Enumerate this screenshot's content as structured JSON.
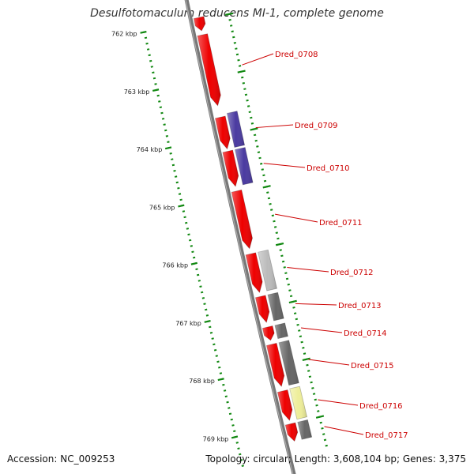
{
  "title": "Desulfotomaculum reducens MI-1, complete genome",
  "footer": {
    "accession": "Accession: NC_009253",
    "summary": "Topology: circular; Length: 3,608,104 bp; Genes: 3,375"
  },
  "colors": {
    "backbone": "#777777",
    "tick": "#118811",
    "forward_gene": "#ee0000",
    "label_line": "#cc0000"
  },
  "kbp_ticks": [
    {
      "label": "762 kbp",
      "kbp": 762
    },
    {
      "label": "763 kbp",
      "kbp": 763
    },
    {
      "label": "764 kbp",
      "kbp": 764
    },
    {
      "label": "765 kbp",
      "kbp": 765
    },
    {
      "label": "766 kbp",
      "kbp": 766
    },
    {
      "label": "767 kbp",
      "kbp": 767
    },
    {
      "label": "768 kbp",
      "kbp": 768
    },
    {
      "label": "769 kbp",
      "kbp": 769
    }
  ],
  "genes": [
    {
      "label": "",
      "start_kbp": 761.95,
      "end_kbp": 762.18,
      "color": "#ee0000"
    },
    {
      "label": "Dred_0708",
      "start_kbp": 762.25,
      "end_kbp": 763.48,
      "color": "#ee0000"
    },
    {
      "label": "Dred_0709",
      "start_kbp": 763.68,
      "end_kbp": 764.23,
      "color": "#ee0000"
    },
    {
      "label": "Dred_0710",
      "start_kbp": 764.27,
      "end_kbp": 764.88,
      "color": "#ee0000"
    },
    {
      "label": "Dred_0711",
      "start_kbp": 764.96,
      "end_kbp": 765.96,
      "color": "#ee0000"
    },
    {
      "label": "Dred_0712",
      "start_kbp": 766.05,
      "end_kbp": 766.72,
      "color": "#ee0000"
    },
    {
      "label": "Dred_0713",
      "start_kbp": 766.79,
      "end_kbp": 767.24,
      "color": "#ee0000"
    },
    {
      "label": "Dred_0714",
      "start_kbp": 767.32,
      "end_kbp": 767.55,
      "color": "#ee0000"
    },
    {
      "label": "Dred_0715",
      "start_kbp": 767.62,
      "end_kbp": 768.35,
      "color": "#ee0000"
    },
    {
      "label": "Dred_0716",
      "start_kbp": 768.43,
      "end_kbp": 768.94,
      "color": "#ee0000"
    },
    {
      "label": "Dred_0717",
      "start_kbp": 769.0,
      "end_kbp": 769.3,
      "color": "#ee0000"
    }
  ],
  "features": [
    {
      "start_kbp": 763.64,
      "end_kbp": 764.23,
      "color": "#4a3aa0"
    },
    {
      "start_kbp": 764.27,
      "end_kbp": 764.88,
      "color": "#4a3aa0"
    },
    {
      "start_kbp": 766.05,
      "end_kbp": 766.72,
      "color": "#bbbbbb"
    },
    {
      "start_kbp": 766.79,
      "end_kbp": 767.24,
      "color": "#666666"
    },
    {
      "start_kbp": 767.32,
      "end_kbp": 767.55,
      "color": "#666666"
    },
    {
      "start_kbp": 767.62,
      "end_kbp": 768.36,
      "color": "#666666"
    },
    {
      "start_kbp": 768.42,
      "end_kbp": 768.95,
      "color": "#eeee99"
    },
    {
      "start_kbp": 769.0,
      "end_kbp": 769.3,
      "color": "#666666"
    }
  ]
}
